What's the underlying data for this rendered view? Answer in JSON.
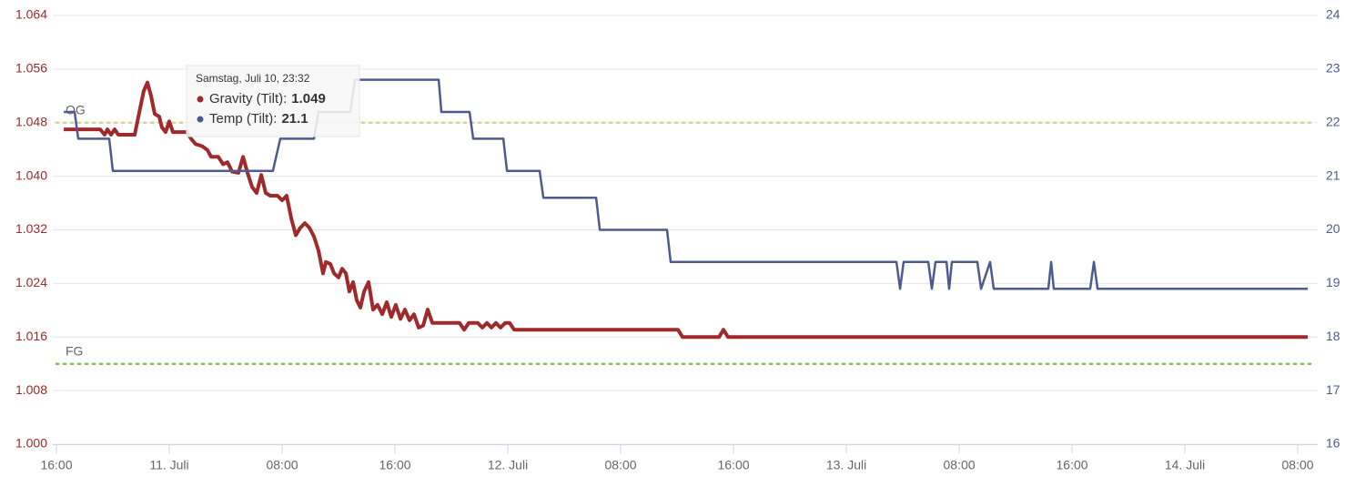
{
  "chart_data": {
    "type": "line",
    "xlim": [
      16,
      104.9
    ],
    "xticks": [
      {
        "value": 16,
        "label": "16:00"
      },
      {
        "value": 24,
        "label": "11. Juli"
      },
      {
        "value": 32,
        "label": "08:00"
      },
      {
        "value": 40,
        "label": "16:00"
      },
      {
        "value": 48,
        "label": "12. Juli"
      },
      {
        "value": 56,
        "label": "08:00"
      },
      {
        "value": 64,
        "label": "16:00"
      },
      {
        "value": 72,
        "label": "13. Juli"
      },
      {
        "value": 80,
        "label": "08:00"
      },
      {
        "value": 88,
        "label": "16:00"
      },
      {
        "value": 96,
        "label": "14. Juli"
      },
      {
        "value": 104,
        "label": "08:00"
      }
    ],
    "ylim": [
      1.0,
      1.064
    ],
    "yticks": [
      {
        "value": 1.0,
        "label": "1.000"
      },
      1.008,
      1.016,
      1.024,
      1.032,
      {
        "value": 1.04,
        "label": "1.040"
      },
      1.048,
      1.056,
      1.064
    ],
    "y2lim": [
      16,
      24
    ],
    "y2ticks": [
      16,
      17,
      18,
      19,
      20,
      21,
      22,
      23,
      24
    ],
    "grid": true,
    "plot_lines": [
      {
        "label": "OG",
        "value": 1.048,
        "color": "#d9d28a"
      },
      {
        "label": "FG",
        "value": 1.012,
        "color": "#7cbf4a"
      }
    ],
    "series": [
      {
        "name": "Gravity (Tilt)",
        "color": "#a0292b",
        "x": [
          16.52,
          19.1,
          19.42,
          19.61,
          19.87,
          20.13,
          20.39,
          21.55,
          21.81,
          22.19,
          22.45,
          22.71,
          22.97,
          23.29,
          23.48,
          23.74,
          24.0,
          24.26,
          25.23,
          25.55,
          25.87,
          26.32,
          26.71,
          26.97,
          27.48,
          27.81,
          28.13,
          28.45,
          28.9,
          29.23,
          29.55,
          29.87,
          30.19,
          30.52,
          30.84,
          31.16,
          31.68,
          32.0,
          32.32,
          32.65,
          32.97,
          33.29,
          33.61,
          33.94,
          34.26,
          34.58,
          34.9,
          35.1,
          35.42,
          35.68,
          36.0,
          36.26,
          36.52,
          36.77,
          37.03,
          37.29,
          37.55,
          37.81,
          38.13,
          38.45,
          38.77,
          39.1,
          39.42,
          39.74,
          40.06,
          40.39,
          40.71,
          41.03,
          41.35,
          41.68,
          42.0,
          42.32,
          42.65,
          42.97,
          44.58,
          44.9,
          45.23,
          45.87,
          46.19,
          46.52,
          46.84,
          47.16,
          47.48,
          47.81,
          48.13,
          48.45,
          60.06,
          60.39,
          62.97,
          63.29,
          63.61,
          104.71
        ],
        "values": [
          1.047,
          1.047,
          1.0462,
          1.047,
          1.0462,
          1.047,
          1.0462,
          1.0462,
          1.0489,
          1.0527,
          1.054,
          1.052,
          1.0493,
          1.0489,
          1.0473,
          1.0466,
          1.0482,
          1.0466,
          1.0466,
          1.0456,
          1.0448,
          1.0445,
          1.0439,
          1.0429,
          1.0429,
          1.0418,
          1.0421,
          1.0407,
          1.0405,
          1.0429,
          1.0405,
          1.0384,
          1.0375,
          1.0402,
          1.0375,
          1.0371,
          1.0371,
          1.0364,
          1.0371,
          1.0337,
          1.0312,
          1.0323,
          1.033,
          1.0323,
          1.031,
          1.0289,
          1.0255,
          1.0272,
          1.0269,
          1.0255,
          1.0249,
          1.0262,
          1.0255,
          1.0228,
          1.0242,
          1.0215,
          1.0204,
          1.0228,
          1.0242,
          1.0201,
          1.0208,
          1.0194,
          1.0212,
          1.019,
          1.0208,
          1.0187,
          1.0201,
          1.0185,
          1.0194,
          1.0174,
          1.0177,
          1.0201,
          1.0181,
          1.0181,
          1.0181,
          1.0171,
          1.0181,
          1.0181,
          1.0174,
          1.0181,
          1.0174,
          1.0181,
          1.0174,
          1.0181,
          1.0181,
          1.0171,
          1.0171,
          1.016,
          1.016,
          1.0171,
          1.016,
          1.016
        ]
      },
      {
        "name": "Temp (Tilt)",
        "color": "#4e5b91",
        "axis": "y2",
        "x": [
          16.52,
          17.29,
          17.55,
          19.74,
          20.0,
          31.35,
          31.87,
          34.26,
          34.58,
          36.84,
          37.16,
          43.1,
          43.29,
          45.29,
          45.55,
          47.68,
          47.94,
          50.26,
          50.52,
          54.26,
          54.52,
          59.29,
          59.55,
          75.55,
          75.81,
          76.06,
          77.81,
          78.06,
          78.32,
          79.1,
          79.29,
          79.48,
          81.29,
          81.55,
          82.19,
          82.45,
          86.32,
          86.52,
          86.71,
          89.29,
          89.55,
          89.81,
          104.71
        ],
        "values": [
          22.2,
          22.2,
          21.7,
          21.7,
          21.1,
          21.1,
          21.7,
          21.7,
          22.2,
          22.2,
          22.8,
          22.8,
          22.2,
          22.2,
          21.7,
          21.7,
          21.1,
          21.1,
          20.6,
          20.6,
          20.0,
          20.0,
          19.4,
          19.4,
          18.9,
          19.4,
          19.4,
          18.9,
          19.4,
          19.4,
          18.9,
          19.4,
          19.4,
          18.9,
          19.4,
          18.9,
          18.9,
          19.4,
          18.9,
          18.9,
          19.4,
          18.9,
          18.9
        ]
      }
    ],
    "tooltip": {
      "title": "Samstag, Juli 10, 23:32",
      "items": [
        {
          "label": "Gravity (Tilt):",
          "value": 1.049
        },
        {
          "label": "Temp (Tilt):",
          "value": 21.1
        }
      ]
    }
  }
}
